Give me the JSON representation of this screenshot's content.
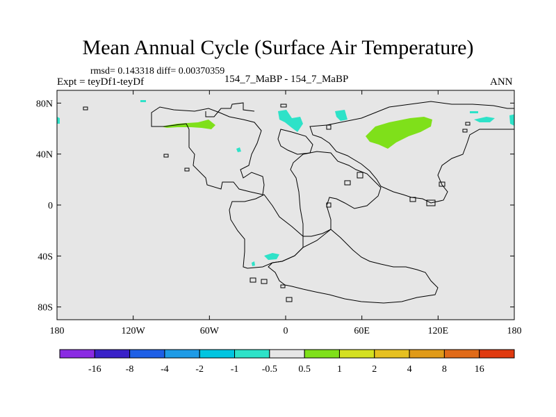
{
  "title": "Mean Annual Cycle (Surface Air Temperature)",
  "stats": "rmsd= 0.143318 diff= 0.00370359",
  "experiment": "Expt = teyDf1-teyDf",
  "case_label": "154_7_MaBP - 154_7_MaBP",
  "season": "ANN",
  "map": {
    "background_color": "#e6e6e6",
    "coastline_color": "#000000",
    "x_ticks": [
      {
        "lon": -180,
        "label": "180"
      },
      {
        "lon": -120,
        "label": "120W"
      },
      {
        "lon": -60,
        "label": "60W"
      },
      {
        "lon": 0,
        "label": "0"
      },
      {
        "lon": 60,
        "label": "60E"
      },
      {
        "lon": 120,
        "label": "120E"
      },
      {
        "lon": 180,
        "label": "180"
      }
    ],
    "y_ticks": [
      {
        "lat": 80,
        "label": "80N"
      },
      {
        "lat": 40,
        "label": "40N"
      },
      {
        "lat": 0,
        "label": "0"
      },
      {
        "lat": -40,
        "label": "40S"
      },
      {
        "lat": -80,
        "label": "80S"
      }
    ]
  },
  "colorbar": {
    "colors": [
      "#8a2be2",
      "#3a22c8",
      "#1e5fe6",
      "#1f9be6",
      "#00c5e0",
      "#2ee2c8",
      "#e6e6e6",
      "#7fe01a",
      "#d4e020",
      "#e6c020",
      "#e09a18",
      "#e06a18",
      "#e03a10"
    ],
    "labels": [
      "-16",
      "-8",
      "-4",
      "-2",
      "-1",
      "-0.5",
      "0.5",
      "1",
      "2",
      "4",
      "8",
      "16"
    ]
  }
}
